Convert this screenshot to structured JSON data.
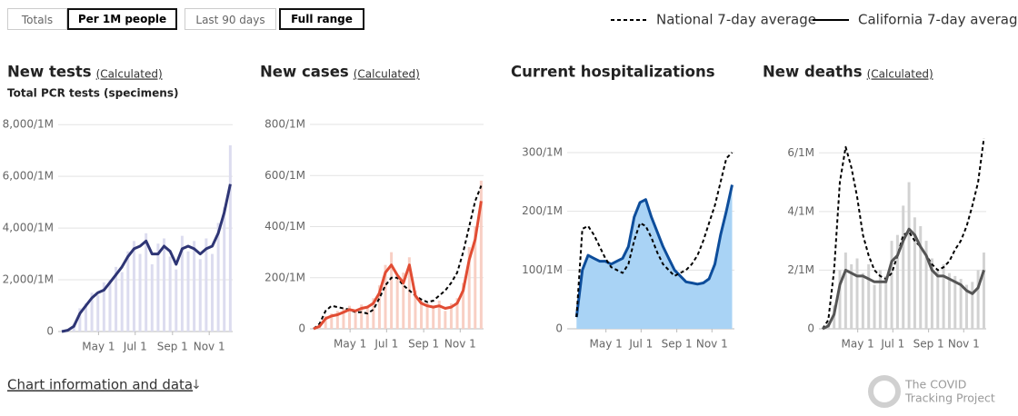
{
  "controls": [
    {
      "label": "Totals",
      "selected": false
    },
    {
      "label": "Per 1M people",
      "selected": true
    },
    {
      "label": "Last 90 days",
      "selected": false
    },
    {
      "label": "Full range",
      "selected": true
    }
  ],
  "legend": [
    {
      "label": "National 7-day average",
      "style": "dashed"
    },
    {
      "label": "California 7-day average",
      "style": "solid"
    }
  ],
  "footer": {
    "link": "Chart information and data",
    "arrow": "↓",
    "logo_lines": [
      "The COVID",
      "Tracking Project"
    ]
  },
  "chart_data": [
    {
      "type": "line",
      "title": "New tests",
      "link": "(Calculated)",
      "subtitle": "Total PCR tests (specimens)",
      "xlim": [
        61,
        345
      ],
      "xticks": [
        {
          "value": 122,
          "label": "May 1"
        },
        {
          "value": 183,
          "label": "Jul 1"
        },
        {
          "value": 245,
          "label": "Sep 1"
        },
        {
          "value": 306,
          "label": "Nov 1"
        }
      ],
      "ylim": [
        0,
        8500
      ],
      "yticks": [
        0,
        {
          "value": 2000,
          "label": "2,000/1M"
        },
        {
          "value": 4000,
          "label": "4,000/1M"
        },
        {
          "value": 6000,
          "label": "6,000/1M"
        },
        {
          "value": 8000,
          "label": "8,000/1M"
        }
      ],
      "series": [
        {
          "kind": "bar",
          "color": "#dcdcef",
          "x": [
            61,
            71,
            81,
            91,
            101,
            111,
            121,
            131,
            141,
            151,
            161,
            171,
            181,
            191,
            201,
            211,
            221,
            231,
            241,
            251,
            261,
            271,
            281,
            291,
            301,
            311,
            321,
            331,
            341
          ],
          "values": [
            0,
            100,
            300,
            900,
            1100,
            1500,
            1400,
            1900,
            2000,
            2500,
            2300,
            3100,
            3500,
            3000,
            3800,
            2600,
            3400,
            3600,
            2900,
            2400,
            3700,
            3100,
            3500,
            2800,
            3600,
            3000,
            4200,
            4800,
            7200
          ]
        },
        {
          "kind": "line",
          "style": "solid",
          "color": "#2e3575",
          "x": [
            61,
            71,
            81,
            91,
            101,
            111,
            121,
            131,
            141,
            151,
            161,
            171,
            181,
            191,
            201,
            211,
            221,
            231,
            241,
            251,
            261,
            271,
            281,
            291,
            301,
            311,
            321,
            331,
            341
          ],
          "values": [
            0,
            50,
            200,
            700,
            1000,
            1300,
            1500,
            1600,
            1900,
            2200,
            2500,
            2900,
            3200,
            3300,
            3500,
            3000,
            3000,
            3300,
            3100,
            2600,
            3200,
            3300,
            3200,
            3000,
            3200,
            3300,
            3800,
            4600,
            5700
          ]
        }
      ]
    },
    {
      "type": "line",
      "title": "New cases",
      "link": "(Calculated)",
      "xlim": [
        61,
        345
      ],
      "xticks": [
        {
          "value": 122,
          "label": "May 1"
        },
        {
          "value": 183,
          "label": "Jul 1"
        },
        {
          "value": 245,
          "label": "Sep 1"
        },
        {
          "value": 306,
          "label": "Nov 1"
        }
      ],
      "ylim": [
        0,
        850
      ],
      "yticks": [
        0,
        {
          "value": 200,
          "label": "200/1M"
        },
        {
          "value": 400,
          "label": "400/1M"
        },
        {
          "value": 600,
          "label": "600/1M"
        },
        {
          "value": 800,
          "label": "800/1M"
        }
      ],
      "series": [
        {
          "kind": "bar",
          "color": "#f8cfc4",
          "x": [
            61,
            71,
            81,
            91,
            101,
            111,
            121,
            131,
            141,
            151,
            161,
            171,
            181,
            191,
            201,
            211,
            221,
            231,
            241,
            251,
            261,
            271,
            281,
            291,
            301,
            311,
            321,
            331,
            341
          ],
          "values": [
            0,
            15,
            50,
            60,
            70,
            80,
            90,
            75,
            95,
            90,
            120,
            170,
            250,
            300,
            200,
            220,
            280,
            150,
            110,
            100,
            90,
            110,
            70,
            100,
            120,
            180,
            320,
            400,
            580
          ]
        },
        {
          "kind": "line",
          "style": "dashed",
          "color": "#000000",
          "x": [
            61,
            71,
            81,
            91,
            101,
            111,
            121,
            131,
            141,
            151,
            161,
            171,
            181,
            191,
            201,
            211,
            221,
            231,
            241,
            251,
            261,
            271,
            281,
            291,
            301,
            311,
            321,
            331,
            341
          ],
          "values": [
            0,
            20,
            70,
            90,
            85,
            80,
            75,
            65,
            65,
            60,
            75,
            120,
            170,
            200,
            200,
            170,
            150,
            130,
            115,
            105,
            110,
            130,
            150,
            180,
            220,
            300,
            400,
            500,
            560
          ]
        },
        {
          "kind": "line",
          "style": "solid",
          "color": "#e14c33",
          "x": [
            61,
            71,
            81,
            91,
            101,
            111,
            121,
            131,
            141,
            151,
            161,
            171,
            181,
            191,
            201,
            211,
            221,
            231,
            241,
            251,
            261,
            271,
            281,
            291,
            301,
            311,
            321,
            331,
            341
          ],
          "values": [
            0,
            10,
            40,
            50,
            55,
            65,
            75,
            70,
            80,
            85,
            100,
            140,
            220,
            250,
            210,
            180,
            250,
            130,
            100,
            90,
            85,
            90,
            80,
            85,
            100,
            150,
            270,
            350,
            500
          ]
        }
      ]
    },
    {
      "type": "line",
      "title": "Current hospitalizations",
      "xlim": [
        61,
        345
      ],
      "xticks": [
        {
          "value": 122,
          "label": "May 1"
        },
        {
          "value": 183,
          "label": "Jul 1"
        },
        {
          "value": 245,
          "label": "Sep 1"
        },
        {
          "value": 306,
          "label": "Nov 1"
        }
      ],
      "ylim": [
        0,
        320
      ],
      "yticks": [
        0,
        {
          "value": 100,
          "label": "100/1M"
        },
        {
          "value": 200,
          "label": "200/1M"
        },
        {
          "value": 300,
          "label": "300/1M"
        }
      ],
      "series": [
        {
          "kind": "area",
          "style": "solid",
          "color": "#0d4d9b",
          "fill": "#a9d3f5",
          "x": [
            71,
            81,
            91,
            101,
            111,
            121,
            131,
            141,
            151,
            161,
            171,
            181,
            191,
            201,
            211,
            221,
            231,
            241,
            251,
            261,
            271,
            281,
            291,
            301,
            311,
            321,
            331,
            341
          ],
          "values": [
            20,
            100,
            125,
            120,
            115,
            115,
            110,
            115,
            120,
            140,
            190,
            215,
            220,
            190,
            165,
            140,
            120,
            100,
            90,
            80,
            78,
            76,
            78,
            85,
            110,
            160,
            200,
            245
          ]
        },
        {
          "kind": "line",
          "style": "dashed",
          "color": "#000000",
          "x": [
            71,
            81,
            91,
            101,
            111,
            121,
            131,
            141,
            151,
            161,
            171,
            181,
            191,
            201,
            211,
            221,
            231,
            241,
            251,
            261,
            271,
            281,
            291,
            301,
            311,
            321,
            331,
            341
          ],
          "values": [
            20,
            170,
            175,
            160,
            140,
            120,
            105,
            100,
            95,
            110,
            150,
            180,
            175,
            155,
            130,
            110,
            100,
            90,
            95,
            100,
            110,
            125,
            150,
            180,
            210,
            250,
            290,
            300
          ]
        }
      ]
    },
    {
      "type": "line",
      "title": "New deaths",
      "link": "(Calculated)",
      "xlim": [
        61,
        345
      ],
      "xticks": [
        {
          "value": 122,
          "label": "May 1"
        },
        {
          "value": 183,
          "label": "Jul 1"
        },
        {
          "value": 245,
          "label": "Sep 1"
        },
        {
          "value": 306,
          "label": "Nov 1"
        }
      ],
      "ylim": [
        0,
        7
      ],
      "yticks": [
        0,
        {
          "value": 2,
          "label": "2/1M"
        },
        {
          "value": 4,
          "label": "4/1M"
        },
        {
          "value": 6,
          "label": "6/1M"
        }
      ],
      "series": [
        {
          "kind": "bar",
          "color": "#d2d2d2",
          "x": [
            61,
            71,
            81,
            91,
            101,
            111,
            121,
            131,
            141,
            151,
            161,
            171,
            181,
            191,
            201,
            211,
            221,
            231,
            241,
            251,
            261,
            271,
            281,
            291,
            301,
            311,
            321,
            331,
            341
          ],
          "values": [
            0,
            0.2,
            0.8,
            2,
            2.6,
            2.2,
            2.4,
            1.9,
            2.2,
            1.5,
            2,
            1.8,
            3,
            3.2,
            4.2,
            5,
            3.8,
            3.5,
            3,
            2.4,
            2,
            2.2,
            1.9,
            1.8,
            1.7,
            1.5,
            1.6,
            2,
            2.6
          ]
        },
        {
          "kind": "line",
          "style": "dashed",
          "color": "#000000",
          "x": [
            61,
            71,
            81,
            91,
            101,
            111,
            121,
            131,
            141,
            151,
            161,
            171,
            181,
            191,
            201,
            211,
            221,
            231,
            241,
            251,
            261,
            271,
            281,
            291,
            301,
            311,
            321,
            331,
            341
          ],
          "values": [
            0,
            0.3,
            2,
            5,
            6.2,
            5.5,
            4.5,
            3.2,
            2.5,
            2,
            1.8,
            1.7,
            1.9,
            2.5,
            3.2,
            3.3,
            3,
            2.8,
            2.5,
            2.2,
            2,
            2.1,
            2.3,
            2.7,
            3,
            3.5,
            4.2,
            5,
            6.5
          ]
        },
        {
          "kind": "line",
          "style": "solid",
          "color": "#555555",
          "x": [
            61,
            71,
            81,
            91,
            101,
            111,
            121,
            131,
            141,
            151,
            161,
            171,
            181,
            191,
            201,
            211,
            221,
            231,
            241,
            251,
            261,
            271,
            281,
            291,
            301,
            311,
            321,
            331,
            341
          ],
          "values": [
            0,
            0.1,
            0.5,
            1.5,
            2,
            1.9,
            1.8,
            1.8,
            1.7,
            1.6,
            1.6,
            1.6,
            2.3,
            2.5,
            3,
            3.4,
            3.2,
            2.8,
            2.5,
            2,
            1.8,
            1.8,
            1.7,
            1.6,
            1.5,
            1.3,
            1.2,
            1.4,
            2
          ]
        }
      ]
    }
  ]
}
